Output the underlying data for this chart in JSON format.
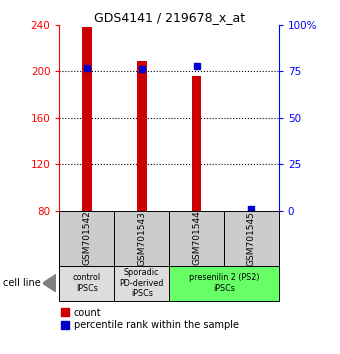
{
  "title": "GDS4141 / 219678_x_at",
  "samples": [
    "GSM701542",
    "GSM701543",
    "GSM701544",
    "GSM701545"
  ],
  "counts": [
    238,
    209,
    196,
    80
  ],
  "percentiles": [
    77,
    76,
    78,
    1
  ],
  "ylim_left": [
    80,
    240
  ],
  "ylim_right": [
    0,
    100
  ],
  "yticks_left": [
    80,
    120,
    160,
    200,
    240
  ],
  "yticks_right": [
    0,
    25,
    50,
    75,
    100
  ],
  "ytick_labels_right": [
    "0",
    "25",
    "50",
    "75",
    "100%"
  ],
  "bar_color": "#cc0000",
  "dot_color": "#0000cc",
  "bar_bottom": 80,
  "bar_width": 0.18,
  "groups": [
    {
      "label": "control\nIPSCs",
      "span": [
        0,
        1
      ],
      "color": "#dddddd"
    },
    {
      "label": "Sporadic\nPD-derived\niPSCs",
      "span": [
        1,
        2
      ],
      "color": "#dddddd"
    },
    {
      "label": "presenilin 2 (PS2)\niPSCs",
      "span": [
        2,
        4
      ],
      "color": "#66ff66"
    }
  ],
  "cell_line_label": "cell line",
  "legend_count_label": "count",
  "legend_percentile_label": "percentile rank within the sample",
  "sample_box_color": "#cccccc",
  "dot_marker_size": 5,
  "gridline_values": [
    120,
    160,
    200
  ]
}
